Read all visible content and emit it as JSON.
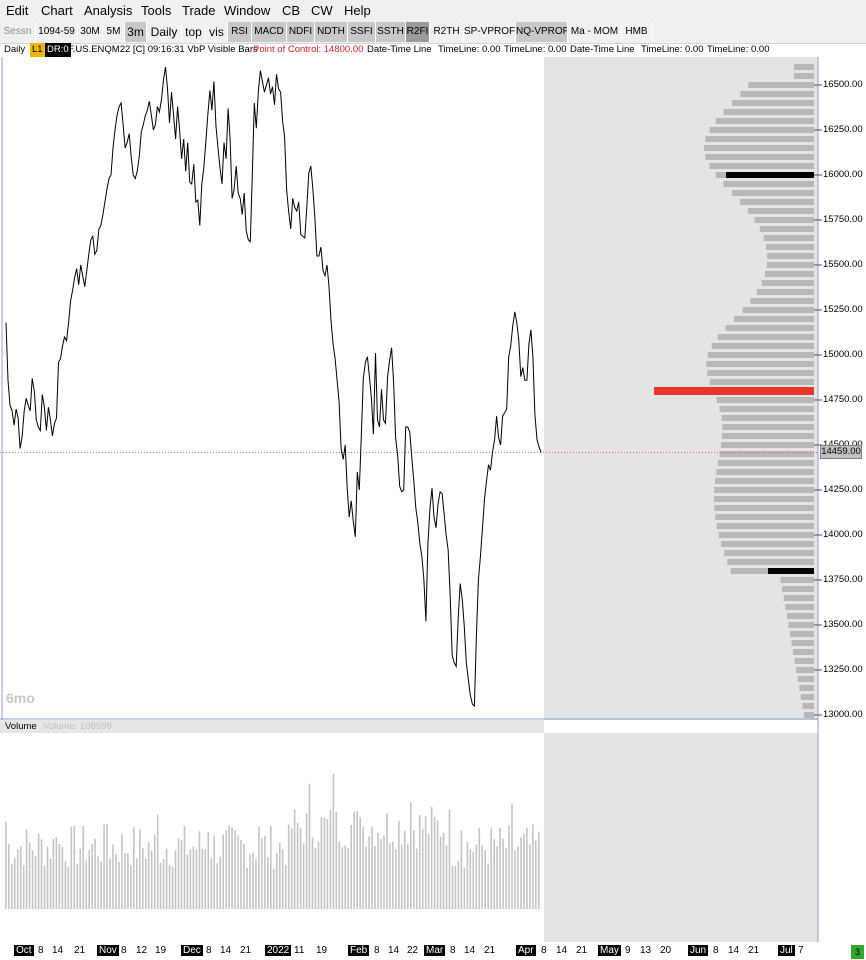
{
  "menu": [
    "Edit",
    "Chart",
    "Analysis",
    "Tools",
    "Trade",
    "Window",
    "CB",
    "CW",
    "Help"
  ],
  "toolbar": [
    {
      "label": "Sessn",
      "style": "light dim"
    },
    {
      "label": "1094-59",
      "style": "light"
    },
    {
      "label": "30M",
      "style": "light"
    },
    {
      "label": "5M",
      "style": "light"
    },
    {
      "label": "3m",
      "style": "gray big"
    },
    {
      "label": "Daily",
      "style": "light big"
    },
    {
      "label": "top",
      "style": "light big"
    },
    {
      "label": "vis",
      "style": "light big"
    },
    {
      "label": "RSI",
      "style": "gray"
    },
    {
      "label": "MACD",
      "style": "gray"
    },
    {
      "label": "NDFI",
      "style": "gray"
    },
    {
      "label": "NDTH",
      "style": "gray"
    },
    {
      "label": "SSFI",
      "style": "gray"
    },
    {
      "label": "SSTH",
      "style": "gray"
    },
    {
      "label": "R2FI",
      "style": "dark"
    },
    {
      "label": "R2TH",
      "style": "light"
    },
    {
      "label": "SP-VPROF",
      "style": "light"
    },
    {
      "label": "NQ-VPROF",
      "style": "gray"
    },
    {
      "label": "Ma - MOM",
      "style": "light"
    },
    {
      "label": "HMB",
      "style": "light"
    }
  ],
  "info": {
    "period": "Daily",
    "badge_l1": "L1",
    "badge_dr": "DR:0",
    "symbol": "F.US.ENQM22 [C] 09:16:31 VbP Visible Bars",
    "poc": "Point of Control: 14800.00",
    "tl1": "Date-Time Line",
    "tl2": "TimeLine: 0.00",
    "tl3": "TimeLine: 0.00",
    "tl4": "Date-Time Line",
    "tl5": "TimeLine: 0.00",
    "tl6": "TimeLine: 0.00"
  },
  "range_label": "6mo",
  "volume_panel": {
    "title": "Volume",
    "value": "Volume: 108599"
  },
  "last_price": "14459.00",
  "colors": {
    "poc": "#e8372a",
    "profile": "#b8b8b8",
    "future_bg": "#e4e4e4",
    "line": "#000000",
    "volume": "#c4c4c4",
    "last_price_line": "#d04040"
  },
  "chart_data": {
    "type": "line",
    "ylim": [
      13000,
      16600
    ],
    "y_ticks": [
      13000,
      13250,
      13500,
      13750,
      14000,
      14250,
      14500,
      14750,
      15000,
      15250,
      15500,
      15750,
      16000,
      16250,
      16500
    ],
    "y_tick_labels": [
      "13000.00",
      "13250.00",
      "13500.00",
      "13750.00",
      "14000.00",
      "14250.00",
      "14500.00",
      "14750.00",
      "15000.00",
      "15250.00",
      "15500.00",
      "15750.00",
      "16000.00",
      "16250.00",
      "16500.00"
    ],
    "x_tick_labels": [
      {
        "text": "Oct",
        "month": true
      },
      {
        "text": "8"
      },
      {
        "text": "14"
      },
      {
        "text": "21"
      },
      {
        "text": "Nov",
        "month": true
      },
      {
        "text": "8"
      },
      {
        "text": "12"
      },
      {
        "text": "19"
      },
      {
        "text": "Dec",
        "month": true
      },
      {
        "text": "8"
      },
      {
        "text": "14"
      },
      {
        "text": "21"
      },
      {
        "text": "2022",
        "month": true
      },
      {
        "text": "11"
      },
      {
        "text": "19"
      },
      {
        "text": "Feb",
        "month": true
      },
      {
        "text": "8"
      },
      {
        "text": "14"
      },
      {
        "text": "22"
      },
      {
        "text": "Mar",
        "month": true
      },
      {
        "text": "8"
      },
      {
        "text": "14"
      },
      {
        "text": "21"
      },
      {
        "text": "Apr",
        "month": true
      },
      {
        "text": "8"
      },
      {
        "text": "14"
      },
      {
        "text": "21"
      },
      {
        "text": "May",
        "month": true
      },
      {
        "text": "9"
      },
      {
        "text": "13"
      },
      {
        "text": "20"
      },
      {
        "text": "Jun",
        "month": true
      },
      {
        "text": "8"
      },
      {
        "text": "14"
      },
      {
        "text": "21"
      },
      {
        "text": "Jul",
        "month": true
      },
      {
        "text": "7"
      }
    ],
    "close": [
      15180,
      14860,
      14720,
      14690,
      14610,
      14700,
      14650,
      14480,
      14550,
      14690,
      14760,
      14720,
      14690,
      14870,
      14800,
      14640,
      14600,
      14580,
      14780,
      14710,
      14580,
      14710,
      14640,
      14550,
      14620,
      14650,
      14960,
      14980,
      15050,
      15100,
      15080,
      15180,
      15300,
      15360,
      15430,
      15480,
      15390,
      15500,
      15440,
      15380,
      15470,
      15560,
      15640,
      15660,
      15560,
      15580,
      15700,
      15720,
      15780,
      15850,
      15920,
      15980,
      16000,
      16150,
      16250,
      16330,
      16380,
      16400,
      16280,
      16150,
      16180,
      16230,
      16100,
      16000,
      15980,
      16020,
      16100,
      16240,
      16280,
      16330,
      16360,
      16410,
      16330,
      16250,
      16280,
      16380,
      16350,
      16420,
      16530,
      16600,
      16480,
      16290,
      16460,
      16330,
      16200,
      16380,
      16250,
      16090,
      16200,
      16020,
      16180,
      15960,
      15950,
      16060,
      15850,
      15860,
      15720,
      15950,
      16040,
      16190,
      16340,
      16470,
      16360,
      16520,
      16270,
      16150,
      16040,
      15950,
      16180,
      16090,
      16370,
      16200,
      15870,
      15920,
      16050,
      15900,
      15870,
      15780,
      15900,
      15690,
      15640,
      15630,
      16000,
      16400,
      16260,
      16470,
      16580,
      16520,
      16460,
      16500,
      16540,
      16450,
      16490,
      16390,
      16560,
      16480,
      16460,
      16300,
      16210,
      15920,
      15800,
      15700,
      15870,
      15820,
      15800,
      15850,
      15670,
      15660,
      15650,
      15820,
      16010,
      16050,
      15920,
      15760,
      15550,
      15550,
      15600,
      15470,
      15440,
      15500,
      15380,
      15190,
      15060,
      14980,
      14860,
      14740,
      14480,
      14420,
      14500,
      14260,
      14100,
      14190,
      14080,
      13990,
      14350,
      14250,
      14550,
      14870,
      14960,
      14990,
      14880,
      14760,
      14560,
      15010,
      14640,
      14600,
      14810,
      14640,
      14620,
      14880,
      14970,
      15040,
      14850,
      14540,
      14440,
      14270,
      14240,
      14250,
      14600,
      14600,
      14570,
      14430,
      14300,
      14150,
      14070,
      13950,
      13880,
      13750,
      13520,
      13950,
      14150,
      14260,
      14100,
      14040,
      14170,
      14240,
      14230,
      14120,
      14000,
      13920,
      13660,
      13330,
      13290,
      13270,
      13540,
      13730,
      13640,
      13490,
      13290,
      13200,
      13110,
      13060,
      13050,
      13440,
      13750,
      13880,
      14040,
      14200,
      14300,
      14390,
      14360,
      14460,
      14530,
      14660,
      14540,
      14500,
      14660,
      14680,
      14700,
      14990,
      15050,
      15160,
      15240,
      15180,
      15080,
      14880,
      14930,
      14860,
      14860,
      15060,
      15140,
      14990,
      14670,
      14530,
      14490,
      14459
    ]
  }
}
